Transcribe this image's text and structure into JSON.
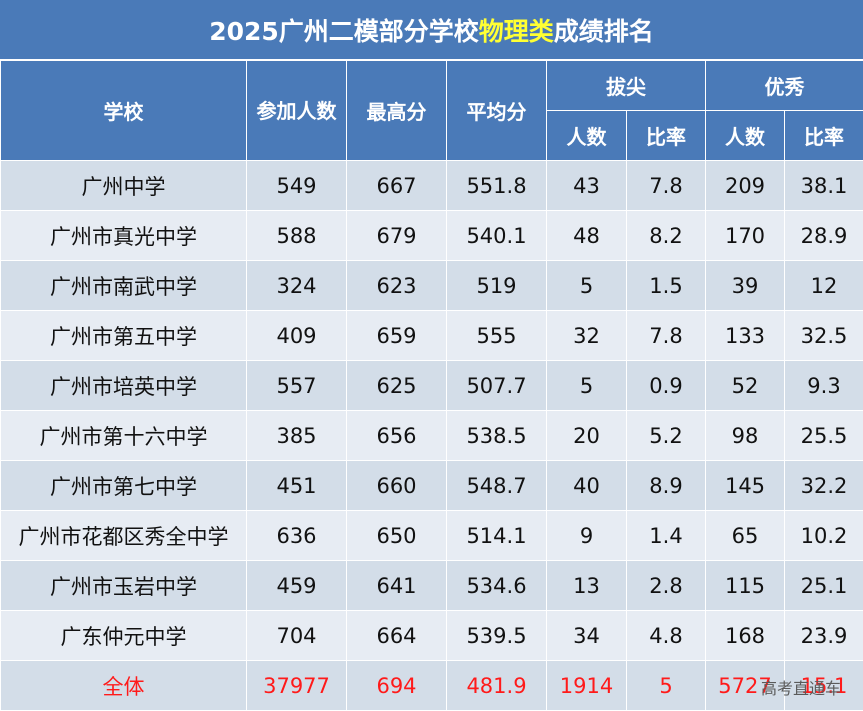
{
  "title": {
    "prefix": "2025广州二模部分学校",
    "highlight": "物理类",
    "suffix": "成绩排名"
  },
  "headers": {
    "school": "学校",
    "participants": "参加人数",
    "max_score": "最高分",
    "avg_score": "平均分",
    "top_group": "拔尖",
    "excellent_group": "优秀",
    "count": "人数",
    "ratio": "比率"
  },
  "rows": [
    {
      "school": "广州中学",
      "participants": "549",
      "max": "667",
      "avg": "551.8",
      "top_count": "43",
      "top_ratio": "7.8",
      "exc_count": "209",
      "exc_ratio": "38.1"
    },
    {
      "school": "广州市真光中学",
      "participants": "588",
      "max": "679",
      "avg": "540.1",
      "top_count": "48",
      "top_ratio": "8.2",
      "exc_count": "170",
      "exc_ratio": "28.9"
    },
    {
      "school": "广州市南武中学",
      "participants": "324",
      "max": "623",
      "avg": "519",
      "top_count": "5",
      "top_ratio": "1.5",
      "exc_count": "39",
      "exc_ratio": "12"
    },
    {
      "school": "广州市第五中学",
      "participants": "409",
      "max": "659",
      "avg": "555",
      "top_count": "32",
      "top_ratio": "7.8",
      "exc_count": "133",
      "exc_ratio": "32.5"
    },
    {
      "school": "广州市培英中学",
      "participants": "557",
      "max": "625",
      "avg": "507.7",
      "top_count": "5",
      "top_ratio": "0.9",
      "exc_count": "52",
      "exc_ratio": "9.3"
    },
    {
      "school": "广州市第十六中学",
      "participants": "385",
      "max": "656",
      "avg": "538.5",
      "top_count": "20",
      "top_ratio": "5.2",
      "exc_count": "98",
      "exc_ratio": "25.5"
    },
    {
      "school": "广州市第七中学",
      "participants": "451",
      "max": "660",
      "avg": "548.7",
      "top_count": "40",
      "top_ratio": "8.9",
      "exc_count": "145",
      "exc_ratio": "32.2"
    },
    {
      "school": "广州市花都区秀全中学",
      "participants": "636",
      "max": "650",
      "avg": "514.1",
      "top_count": "9",
      "top_ratio": "1.4",
      "exc_count": "65",
      "exc_ratio": "10.2"
    },
    {
      "school": "广州市玉岩中学",
      "participants": "459",
      "max": "641",
      "avg": "534.6",
      "top_count": "13",
      "top_ratio": "2.8",
      "exc_count": "115",
      "exc_ratio": "25.1"
    },
    {
      "school": "广东仲元中学",
      "participants": "704",
      "max": "664",
      "avg": "539.5",
      "top_count": "34",
      "top_ratio": "4.8",
      "exc_count": "168",
      "exc_ratio": "23.9"
    }
  ],
  "total": {
    "school": "全体",
    "participants": "37977",
    "max": "694",
    "avg": "481.9",
    "top_count": "1914",
    "top_ratio": "5",
    "exc_count": "5727",
    "exc_ratio": "15.1"
  },
  "watermark": "高考直通车",
  "colors": {
    "header_bg": "#4a7ab8",
    "title_highlight": "#ffff33",
    "row_odd": "#d3dde8",
    "row_even": "#e7ecf3",
    "total_text": "#ff1a1a"
  }
}
